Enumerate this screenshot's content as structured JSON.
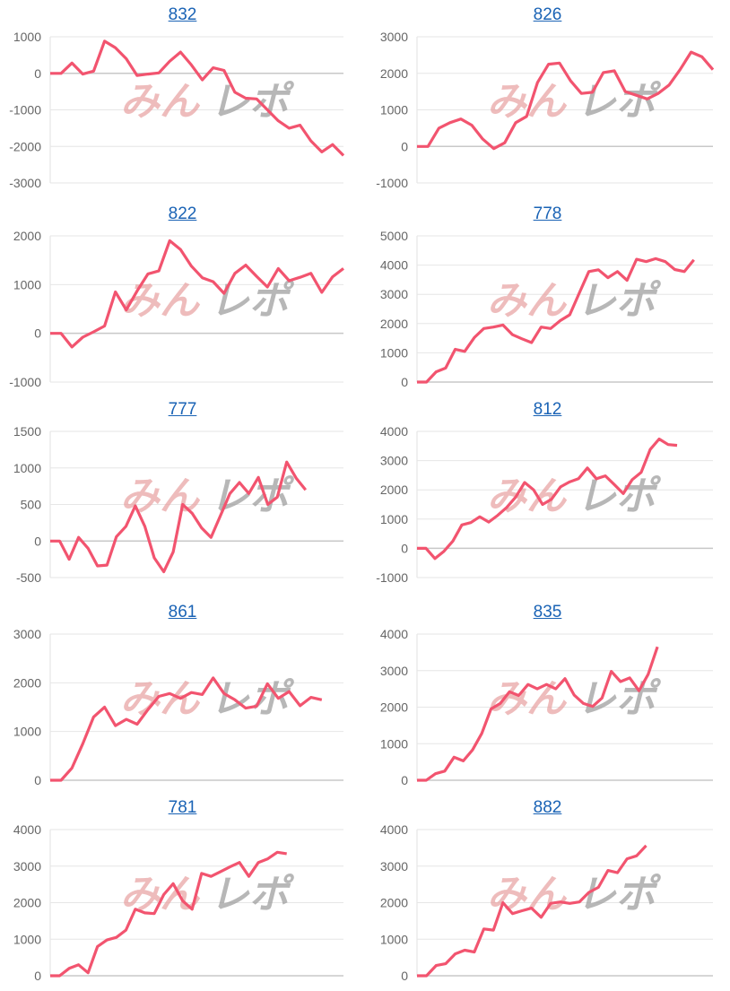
{
  "watermark": {
    "text1": "みん",
    "text2": "レポ"
  },
  "colors": {
    "line": "#f2546f",
    "grid": "#e6e6e6",
    "zero": "#c8c8c8",
    "title": "#1a63b5"
  },
  "chart_data": [
    {
      "type": "line",
      "title": "832",
      "ylim": [
        -3000,
        1000
      ],
      "yticks": [
        1000,
        0,
        -1000,
        -2000,
        -3000
      ],
      "xlim": [
        0,
        27
      ],
      "values": [
        0,
        0,
        280,
        -20,
        60,
        880,
        700,
        400,
        -60,
        -20,
        10,
        330,
        580,
        230,
        -180,
        150,
        80,
        -520,
        -680,
        -700,
        -1000,
        -1300,
        -1500,
        -1420,
        -1850,
        -2150,
        -1950,
        -2250
      ]
    },
    {
      "type": "line",
      "title": "826",
      "ylim": [
        -1000,
        3000
      ],
      "yticks": [
        3000,
        2000,
        1000,
        0,
        -1000
      ],
      "xlim": [
        0,
        27
      ],
      "values": [
        0,
        0,
        500,
        650,
        750,
        580,
        200,
        -60,
        100,
        650,
        820,
        1750,
        2250,
        2280,
        1800,
        1450,
        1480,
        2020,
        2070,
        1500,
        1400,
        1300,
        1450,
        1680,
        2100,
        2580,
        2450,
        2100
      ]
    },
    {
      "type": "line",
      "title": "822",
      "ylim": [
        -1000,
        2000
      ],
      "yticks": [
        2000,
        1000,
        0,
        -1000
      ],
      "xlim": [
        0,
        27
      ],
      "values": [
        0,
        0,
        -280,
        -80,
        30,
        150,
        850,
        480,
        870,
        1220,
        1280,
        1900,
        1720,
        1380,
        1140,
        1060,
        820,
        1230,
        1400,
        1170,
        950,
        1330,
        1080,
        1150,
        1230,
        840,
        1160,
        1330
      ]
    },
    {
      "type": "line",
      "title": "778",
      "ylim": [
        0,
        5000
      ],
      "yticks": [
        5000,
        4000,
        3000,
        2000,
        1000,
        0
      ],
      "xlim": [
        0,
        31
      ],
      "values": [
        0,
        0,
        350,
        480,
        1120,
        1050,
        1520,
        1830,
        1880,
        1950,
        1620,
        1480,
        1350,
        1880,
        1830,
        2100,
        2300,
        3050,
        3780,
        3840,
        3570,
        3780,
        3480,
        4200,
        4120,
        4220,
        4120,
        3850,
        3780,
        4180
      ]
    },
    {
      "type": "line",
      "title": "777",
      "ylim": [
        -500,
        1500
      ],
      "yticks": [
        1500,
        1000,
        500,
        0,
        -500
      ],
      "xlim": [
        0,
        31
      ],
      "values": [
        0,
        0,
        -250,
        50,
        -100,
        -340,
        -330,
        60,
        200,
        480,
        200,
        -230,
        -420,
        -150,
        500,
        380,
        180,
        50,
        350,
        650,
        800,
        650,
        870,
        500,
        600,
        1080,
        860,
        700
      ]
    },
    {
      "type": "line",
      "title": "812",
      "ylim": [
        -1000,
        4000
      ],
      "yticks": [
        4000,
        3000,
        2000,
        1000,
        0,
        -1000
      ],
      "xlim": [
        0,
        33
      ],
      "values": [
        0,
        0,
        -350,
        -100,
        250,
        800,
        880,
        1080,
        900,
        1130,
        1400,
        1750,
        2250,
        2000,
        1500,
        1680,
        2100,
        2270,
        2380,
        2750,
        2380,
        2480,
        2180,
        1870,
        2350,
        2600,
        3380,
        3740,
        3550,
        3520
      ]
    },
    {
      "type": "line",
      "title": "861",
      "ylim": [
        0,
        3000
      ],
      "yticks": [
        3000,
        2000,
        1000,
        0
      ],
      "xlim": [
        0,
        27
      ],
      "values": [
        0,
        0,
        250,
        750,
        1300,
        1500,
        1120,
        1250,
        1150,
        1450,
        1720,
        1780,
        1680,
        1800,
        1760,
        2100,
        1780,
        1650,
        1480,
        1520,
        1980,
        1680,
        1820,
        1530,
        1700,
        1650
      ]
    },
    {
      "type": "line",
      "title": "835",
      "ylim": [
        0,
        4000
      ],
      "yticks": [
        4000,
        3000,
        2000,
        1000,
        0
      ],
      "xlim": [
        0,
        32
      ],
      "values": [
        0,
        0,
        180,
        250,
        630,
        530,
        830,
        1280,
        1950,
        2100,
        2420,
        2320,
        2620,
        2500,
        2620,
        2500,
        2780,
        2330,
        2100,
        2020,
        2250,
        2980,
        2700,
        2800,
        2450,
        2900,
        3650
      ]
    },
    {
      "type": "line",
      "title": "781",
      "ylim": [
        0,
        4000
      ],
      "yticks": [
        4000,
        3000,
        2000,
        1000,
        0
      ],
      "xlim": [
        0,
        31
      ],
      "values": [
        0,
        0,
        200,
        300,
        80,
        800,
        980,
        1050,
        1250,
        1820,
        1720,
        1700,
        2220,
        2520,
        2050,
        1820,
        2800,
        2720,
        2850,
        2980,
        3100,
        2720,
        3100,
        3200,
        3380,
        3340
      ]
    },
    {
      "type": "line",
      "title": "882",
      "ylim": [
        0,
        4000
      ],
      "yticks": [
        4000,
        3000,
        2000,
        1000,
        0
      ],
      "xlim": [
        0,
        31
      ],
      "values": [
        0,
        0,
        280,
        330,
        600,
        700,
        650,
        1280,
        1250,
        2000,
        1700,
        1780,
        1850,
        1600,
        1980,
        2020,
        1980,
        2020,
        2280,
        2420,
        2880,
        2820,
        3200,
        3280,
        3560
      ]
    }
  ]
}
